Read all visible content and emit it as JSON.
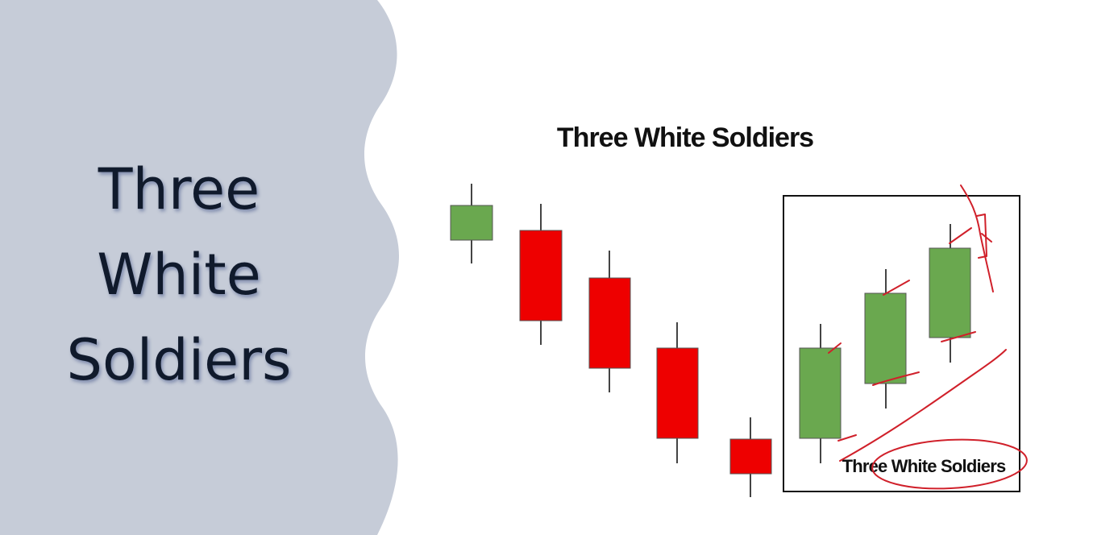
{
  "slide_title": [
    "Three",
    "White",
    "Soldiers"
  ],
  "diagram": {
    "title": "Three White Soldiers",
    "box_label": "Three White Soldiers"
  }
}
